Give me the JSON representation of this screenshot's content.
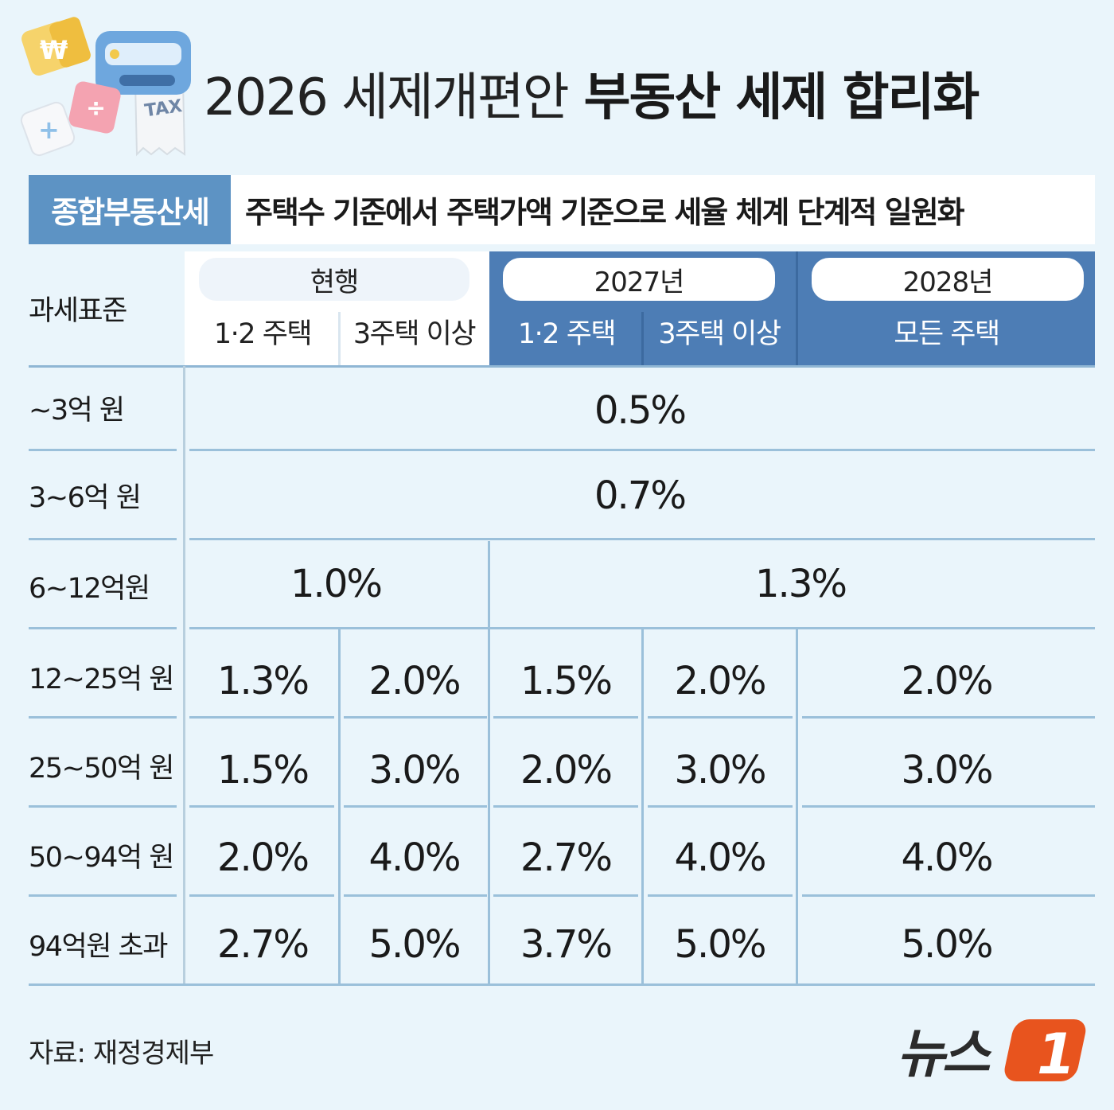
{
  "title": {
    "prefix": "2026 세제개편안",
    "main": "부동산 세제 합리화"
  },
  "subtitle": {
    "label": "종합부동산세",
    "text": "주택수 기준에서 주택가액 기준으로 세율 체계 단계적 일원화"
  },
  "table": {
    "row_header_label": "과세표준",
    "groups": [
      {
        "label": "현행",
        "columns": [
          "1·2 주택",
          "3주택 이상"
        ]
      },
      {
        "label": "2027년",
        "columns": [
          "1·2 주택",
          "3주택 이상"
        ]
      },
      {
        "label": "2028년",
        "columns": [
          "모든 주택"
        ]
      }
    ],
    "rows": [
      {
        "bracket": "~3억 원",
        "merged_all": "0.5%"
      },
      {
        "bracket": "3~6억 원",
        "merged_all": "0.7%"
      },
      {
        "bracket": "6~12억원",
        "merged_current": "1.0%",
        "merged_future": "1.3%"
      },
      {
        "bracket": "12~25억 원",
        "cells": [
          "1.3%",
          "2.0%",
          "1.5%",
          "2.0%",
          "2.0%"
        ]
      },
      {
        "bracket": "25~50억 원",
        "cells": [
          "1.5%",
          "3.0%",
          "2.0%",
          "3.0%",
          "3.0%"
        ]
      },
      {
        "bracket": "50~94억 원",
        "cells": [
          "2.0%",
          "4.0%",
          "2.7%",
          "4.0%",
          "4.0%"
        ]
      },
      {
        "bracket": "94억원 초과",
        "cells": [
          "2.7%",
          "5.0%",
          "3.7%",
          "5.0%",
          "5.0%"
        ]
      }
    ]
  },
  "source": "자료: 재정경제부",
  "logo": {
    "text": "뉴스",
    "mark": "1"
  },
  "colors": {
    "background": "#eaf5fb",
    "header_blue": "#4d7db5",
    "label_blue": "#5d93c4",
    "logo_orange": "#e8541e"
  },
  "icons": [
    "tax-calculator-icon",
    "won-cube-icon",
    "plus-cube-icon",
    "divide-cube-icon"
  ]
}
